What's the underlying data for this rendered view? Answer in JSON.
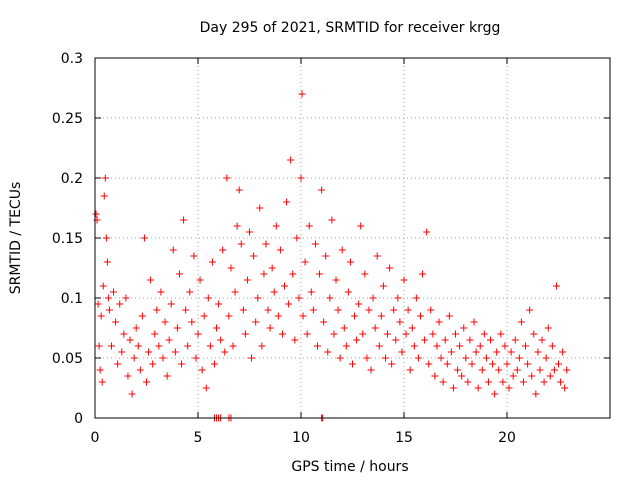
{
  "chart_data": {
    "type": "scatter",
    "title": "Day 295 of 2021, SRMTID for receiver krgg",
    "xlabel": "GPS time / hours",
    "ylabel": "SRMTID / TECUs",
    "xlim": [
      0,
      25
    ],
    "ylim": [
      0,
      0.3
    ],
    "xticks": [
      0,
      5,
      10,
      15,
      20
    ],
    "xtick_labels": [
      "0",
      "5",
      "10",
      "15",
      "20"
    ],
    "yticks": [
      0,
      0.05,
      0.1,
      0.15,
      0.2,
      0.25,
      0.3
    ],
    "ytick_labels": [
      "0",
      "0.05",
      "0.1",
      "0.15",
      "0.2",
      "0.25",
      "0.3"
    ],
    "grid": true,
    "marker": "+",
    "color": "#ff0000",
    "series": [
      {
        "name": "SRMTID",
        "points": [
          [
            0.05,
            0.17
          ],
          [
            0.1,
            0.165
          ],
          [
            0.15,
            0.095
          ],
          [
            0.2,
            0.06
          ],
          [
            0.25,
            0.04
          ],
          [
            0.3,
            0.085
          ],
          [
            0.35,
            0.03
          ],
          [
            0.4,
            0.11
          ],
          [
            0.45,
            0.185
          ],
          [
            0.5,
            0.2
          ],
          [
            0.55,
            0.15
          ],
          [
            0.6,
            0.13
          ],
          [
            0.65,
            0.1
          ],
          [
            0.7,
            0.09
          ],
          [
            0.8,
            0.06
          ],
          [
            0.9,
            0.105
          ],
          [
            1.0,
            0.08
          ],
          [
            1.1,
            0.045
          ],
          [
            1.2,
            0.095
          ],
          [
            1.3,
            0.055
          ],
          [
            1.4,
            0.07
          ],
          [
            1.5,
            0.1
          ],
          [
            1.6,
            0.035
          ],
          [
            1.7,
            0.065
          ],
          [
            1.8,
            0.02
          ],
          [
            1.9,
            0.05
          ],
          [
            2.0,
            0.075
          ],
          [
            2.1,
            0.06
          ],
          [
            2.2,
            0.04
          ],
          [
            2.3,
            0.085
          ],
          [
            2.4,
            0.15
          ],
          [
            2.5,
            0.03
          ],
          [
            2.6,
            0.055
          ],
          [
            2.7,
            0.115
          ],
          [
            2.8,
            0.045
          ],
          [
            2.9,
            0.07
          ],
          [
            3.0,
            0.09
          ],
          [
            3.1,
            0.06
          ],
          [
            3.2,
            0.105
          ],
          [
            3.3,
            0.05
          ],
          [
            3.4,
            0.08
          ],
          [
            3.5,
            0.035
          ],
          [
            3.6,
            0.065
          ],
          [
            3.7,
            0.095
          ],
          [
            3.8,
            0.14
          ],
          [
            3.9,
            0.055
          ],
          [
            4.0,
            0.075
          ],
          [
            4.1,
            0.12
          ],
          [
            4.2,
            0.045
          ],
          [
            4.3,
            0.165
          ],
          [
            4.4,
            0.09
          ],
          [
            4.5,
            0.06
          ],
          [
            4.6,
            0.105
          ],
          [
            4.7,
            0.08
          ],
          [
            4.8,
            0.135
          ],
          [
            4.9,
            0.05
          ],
          [
            5.0,
            0.07
          ],
          [
            5.1,
            0.115
          ],
          [
            5.2,
            0.04
          ],
          [
            5.3,
            0.085
          ],
          [
            5.4,
            0.025
          ],
          [
            5.5,
            0.1
          ],
          [
            5.6,
            0.06
          ],
          [
            5.7,
            0.13
          ],
          [
            5.8,
            0.045
          ],
          [
            5.9,
            0.075
          ],
          [
            6.0,
            0.095
          ],
          [
            6.1,
            0.065
          ],
          [
            6.2,
            0.14
          ],
          [
            6.3,
            0.055
          ],
          [
            6.4,
            0.2
          ],
          [
            6.5,
            0.085
          ],
          [
            6.6,
            0.125
          ],
          [
            6.7,
            0.06
          ],
          [
            6.8,
            0.105
          ],
          [
            6.9,
            0.16
          ],
          [
            7.0,
            0.19
          ],
          [
            7.1,
            0.145
          ],
          [
            7.2,
            0.09
          ],
          [
            7.3,
            0.07
          ],
          [
            7.4,
            0.115
          ],
          [
            7.5,
            0.155
          ],
          [
            7.6,
            0.05
          ],
          [
            7.7,
            0.135
          ],
          [
            7.8,
            0.08
          ],
          [
            7.9,
            0.1
          ],
          [
            8.0,
            0.175
          ],
          [
            8.1,
            0.06
          ],
          [
            8.2,
            0.12
          ],
          [
            8.3,
            0.145
          ],
          [
            8.4,
            0.09
          ],
          [
            8.5,
            0.075
          ],
          [
            8.6,
            0.125
          ],
          [
            8.7,
            0.105
          ],
          [
            8.8,
            0.16
          ],
          [
            8.9,
            0.085
          ],
          [
            9.0,
            0.14
          ],
          [
            9.1,
            0.07
          ],
          [
            9.2,
            0.11
          ],
          [
            9.3,
            0.18
          ],
          [
            9.4,
            0.095
          ],
          [
            9.5,
            0.215
          ],
          [
            9.6,
            0.12
          ],
          [
            9.7,
            0.065
          ],
          [
            9.8,
            0.15
          ],
          [
            9.9,
            0.1
          ],
          [
            10.0,
            0.2
          ],
          [
            10.05,
            0.27
          ],
          [
            10.1,
            0.085
          ],
          [
            10.2,
            0.13
          ],
          [
            10.3,
            0.07
          ],
          [
            10.4,
            0.16
          ],
          [
            10.5,
            0.105
          ],
          [
            10.6,
            0.09
          ],
          [
            10.7,
            0.145
          ],
          [
            10.8,
            0.06
          ],
          [
            10.9,
            0.12
          ],
          [
            11.0,
            0.19
          ],
          [
            11.1,
            0.08
          ],
          [
            11.2,
            0.135
          ],
          [
            11.3,
            0.055
          ],
          [
            11.4,
            0.1
          ],
          [
            11.5,
            0.165
          ],
          [
            11.6,
            0.07
          ],
          [
            11.7,
            0.115
          ],
          [
            11.8,
            0.09
          ],
          [
            11.9,
            0.05
          ],
          [
            12.0,
            0.14
          ],
          [
            12.1,
            0.075
          ],
          [
            12.2,
            0.06
          ],
          [
            12.3,
            0.105
          ],
          [
            12.4,
            0.13
          ],
          [
            12.5,
            0.045
          ],
          [
            12.6,
            0.085
          ],
          [
            12.7,
            0.065
          ],
          [
            12.8,
            0.095
          ],
          [
            12.9,
            0.16
          ],
          [
            13.0,
            0.07
          ],
          [
            13.1,
            0.12
          ],
          [
            13.2,
            0.05
          ],
          [
            13.3,
            0.09
          ],
          [
            13.4,
            0.04
          ],
          [
            13.5,
            0.1
          ],
          [
            13.6,
            0.075
          ],
          [
            13.7,
            0.135
          ],
          [
            13.8,
            0.06
          ],
          [
            13.9,
            0.085
          ],
          [
            14.0,
            0.11
          ],
          [
            14.1,
            0.05
          ],
          [
            14.2,
            0.07
          ],
          [
            14.3,
            0.125
          ],
          [
            14.4,
            0.045
          ],
          [
            14.5,
            0.09
          ],
          [
            14.6,
            0.065
          ],
          [
            14.7,
            0.1
          ],
          [
            14.8,
            0.08
          ],
          [
            14.9,
            0.055
          ],
          [
            15.0,
            0.115
          ],
          [
            15.1,
            0.07
          ],
          [
            15.2,
            0.09
          ],
          [
            15.3,
            0.04
          ],
          [
            15.4,
            0.075
          ],
          [
            15.5,
            0.06
          ],
          [
            15.6,
            0.1
          ],
          [
            15.7,
            0.05
          ],
          [
            15.8,
            0.085
          ],
          [
            15.9,
            0.12
          ],
          [
            16.0,
            0.065
          ],
          [
            16.1,
            0.155
          ],
          [
            16.2,
            0.045
          ],
          [
            16.3,
            0.09
          ],
          [
            16.4,
            0.07
          ],
          [
            16.5,
            0.035
          ],
          [
            16.6,
            0.06
          ],
          [
            16.7,
            0.08
          ],
          [
            16.8,
            0.05
          ],
          [
            16.9,
            0.03
          ],
          [
            17.0,
            0.065
          ],
          [
            17.1,
            0.045
          ],
          [
            17.2,
            0.085
          ],
          [
            17.3,
            0.055
          ],
          [
            17.4,
            0.025
          ],
          [
            17.5,
            0.07
          ],
          [
            17.6,
            0.04
          ],
          [
            17.7,
            0.06
          ],
          [
            17.8,
            0.035
          ],
          [
            17.9,
            0.075
          ],
          [
            18.0,
            0.05
          ],
          [
            18.1,
            0.03
          ],
          [
            18.2,
            0.065
          ],
          [
            18.3,
            0.045
          ],
          [
            18.4,
            0.08
          ],
          [
            18.5,
            0.055
          ],
          [
            18.6,
            0.025
          ],
          [
            18.7,
            0.06
          ],
          [
            18.8,
            0.04
          ],
          [
            18.9,
            0.07
          ],
          [
            19.0,
            0.05
          ],
          [
            19.1,
            0.03
          ],
          [
            19.2,
            0.065
          ],
          [
            19.3,
            0.045
          ],
          [
            19.4,
            0.02
          ],
          [
            19.5,
            0.055
          ],
          [
            19.6,
            0.04
          ],
          [
            19.7,
            0.07
          ],
          [
            19.8,
            0.03
          ],
          [
            19.9,
            0.06
          ],
          [
            20.0,
            0.045
          ],
          [
            20.1,
            0.025
          ],
          [
            20.2,
            0.055
          ],
          [
            20.3,
            0.035
          ],
          [
            20.4,
            0.065
          ],
          [
            20.5,
            0.04
          ],
          [
            20.6,
            0.05
          ],
          [
            20.7,
            0.08
          ],
          [
            20.8,
            0.03
          ],
          [
            20.9,
            0.06
          ],
          [
            21.0,
            0.045
          ],
          [
            21.1,
            0.09
          ],
          [
            21.2,
            0.035
          ],
          [
            21.3,
            0.07
          ],
          [
            21.4,
            0.02
          ],
          [
            21.5,
            0.055
          ],
          [
            21.6,
            0.04
          ],
          [
            21.7,
            0.065
          ],
          [
            21.8,
            0.03
          ],
          [
            21.9,
            0.05
          ],
          [
            22.0,
            0.075
          ],
          [
            22.1,
            0.035
          ],
          [
            22.2,
            0.06
          ],
          [
            22.3,
            0.04
          ],
          [
            22.4,
            0.11
          ],
          [
            22.5,
            0.045
          ],
          [
            22.6,
            0.03
          ],
          [
            22.7,
            0.055
          ],
          [
            22.8,
            0.025
          ],
          [
            22.9,
            0.04
          ],
          [
            5.8,
            0.0
          ],
          [
            5.9,
            0.0
          ],
          [
            6.0,
            0.0
          ],
          [
            6.1,
            0.0
          ],
          [
            6.5,
            0.0
          ],
          [
            6.6,
            0.0
          ],
          [
            11.0,
            0.0
          ],
          [
            11.05,
            0.0
          ]
        ]
      }
    ]
  }
}
